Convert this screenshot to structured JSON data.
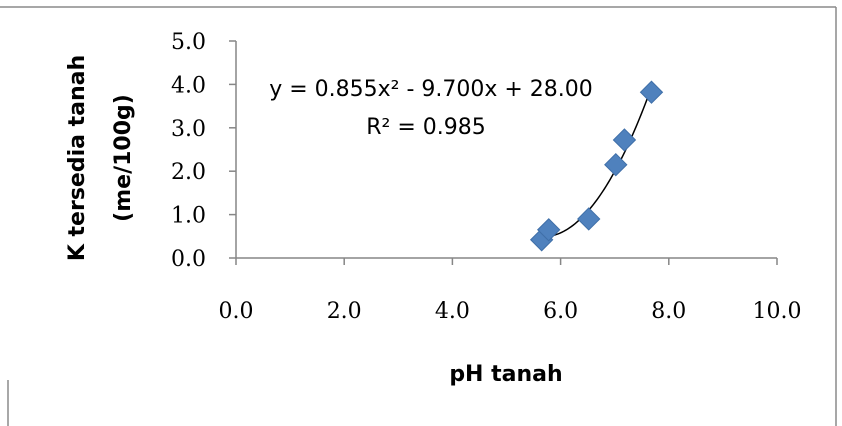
{
  "chart_data": {
    "type": "scatter",
    "title": "",
    "xlabel": "pH tanah",
    "ylabel_lines": [
      "K tersedia tanah",
      "(me/100g)"
    ],
    "xlim": [
      0,
      10
    ],
    "ylim": [
      0,
      5
    ],
    "xticks": [
      "0.0",
      "2.0",
      "4.0",
      "6.0",
      "8.0",
      "10.0"
    ],
    "yticks": [
      "0.0",
      "1.0",
      "2.0",
      "3.0",
      "4.0",
      "5.0"
    ],
    "grid": false,
    "legend": "none",
    "series": [
      {
        "marker": "diamond",
        "color": "#4F81BD",
        "points": [
          {
            "x": 5.65,
            "y": 0.42
          },
          {
            "x": 5.78,
            "y": 0.65
          },
          {
            "x": 6.52,
            "y": 0.9
          },
          {
            "x": 7.02,
            "y": 2.15
          },
          {
            "x": 7.18,
            "y": 2.72
          },
          {
            "x": 7.68,
            "y": 3.82
          }
        ]
      }
    ],
    "trendline": {
      "type": "polynomial-2",
      "coefficients": [
        0.855,
        -9.7,
        28.0
      ],
      "x_range": [
        5.65,
        7.7
      ],
      "color": "#000000",
      "equation_text": "y = 0.855x² - 9.700x + 28.00",
      "r2_text": "R² = 0.985"
    }
  }
}
